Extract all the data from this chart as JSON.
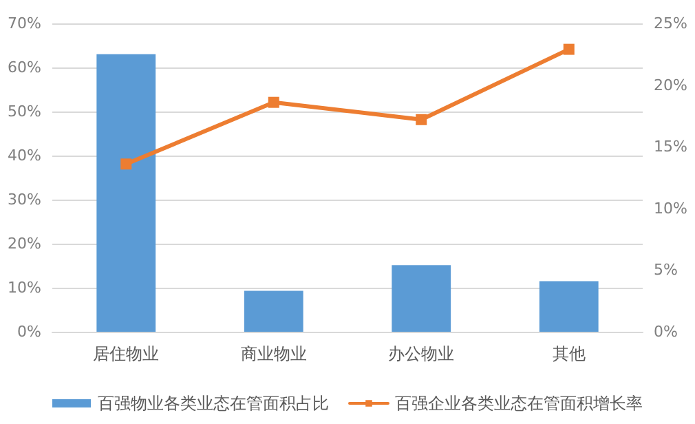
{
  "chart_data": {
    "type": "bar",
    "categories": [
      "居住物业",
      "商业物业",
      "办公物业",
      "其他"
    ],
    "series": [
      {
        "name": "百强物业各类业态在管面积占比",
        "color": "#5b9bd5",
        "values": [
          63,
          9.3,
          15.1,
          11.5
        ]
      },
      {
        "name": "百强企业各类业态在管面积增长率",
        "color": "#ed7d31",
        "type": "line",
        "axis": "y2",
        "marker": "square",
        "values": [
          13.6,
          18.6,
          17.2,
          22.9
        ]
      }
    ],
    "ylim": [
      0,
      70
    ],
    "yticks": [
      {
        "value": 0,
        "label": "0%"
      },
      {
        "value": 10,
        "label": "10%"
      },
      {
        "value": 20,
        "label": "20%"
      },
      {
        "value": 30,
        "label": "30%"
      },
      {
        "value": 40,
        "label": "40%"
      },
      {
        "value": 50,
        "label": "50%"
      },
      {
        "value": 60,
        "label": "60%"
      },
      {
        "value": 70,
        "label": "70%"
      }
    ],
    "y2lim": [
      0,
      25
    ],
    "y2ticks": [
      {
        "value": 0,
        "label": "0%"
      },
      {
        "value": 5,
        "label": "5%"
      },
      {
        "value": 10,
        "label": "10%"
      },
      {
        "value": 15,
        "label": "15%"
      },
      {
        "value": 20,
        "label": "20%"
      },
      {
        "value": 25,
        "label": "25%"
      }
    ],
    "grid": "y",
    "legend": "bottom"
  }
}
